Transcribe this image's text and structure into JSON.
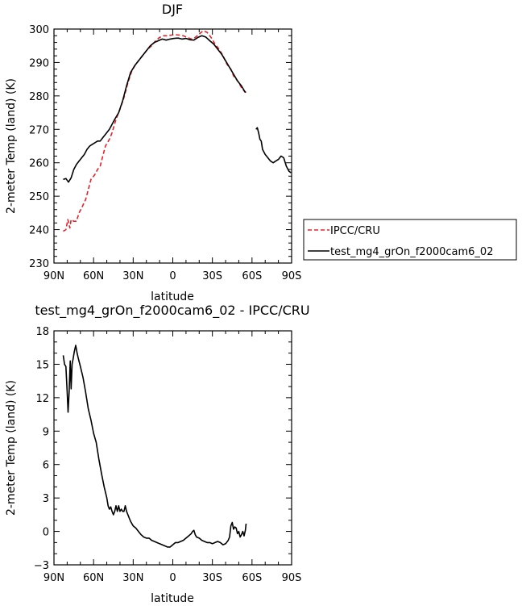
{
  "colors": {
    "obs": "#e8202a",
    "model": "#000000",
    "frame": "#000000"
  },
  "chart_data": [
    {
      "type": "line",
      "title": "DJF",
      "xlabel": "latitude",
      "ylabel": "2-meter Temp (land) (K)",
      "xlim": [
        90,
        -90
      ],
      "ylim": [
        230,
        300
      ],
      "xticks": [
        90,
        60,
        30,
        0,
        -30,
        -60,
        -90
      ],
      "xtick_labels": [
        "90N",
        "60N",
        "30N",
        "0",
        "30S",
        "60S",
        "90S"
      ],
      "yticks": [
        230,
        240,
        250,
        260,
        270,
        280,
        290,
        300
      ],
      "ytick_labels": [
        "230",
        "240",
        "250",
        "260",
        "270",
        "280",
        "290",
        "300"
      ],
      "legend": {
        "placement": "right",
        "entries": [
          {
            "label": "IPCC/CRU",
            "color": "#e8202a",
            "dash": "dashed"
          },
          {
            "label": "test_mg4_grOn_f2000cam6_02",
            "color": "#000000",
            "dash": "solid"
          }
        ]
      },
      "series": [
        {
          "name": "IPCC/CRU",
          "color": "#e8202a",
          "dash": "dashed",
          "segments": [
            [
              [
                83,
                239.5
              ],
              [
                81,
                240
              ],
              [
                79.5,
                243
              ],
              [
                78,
                240.5
              ],
              [
                77,
                243
              ],
              [
                75,
                242.5
              ],
              [
                73,
                242.5
              ],
              [
                71,
                245
              ],
              [
                69,
                246.5
              ],
              [
                66,
                249
              ],
              [
                64,
                252
              ],
              [
                62,
                255
              ],
              [
                59,
                256.5
              ],
              [
                57,
                258
              ],
              [
                55,
                259
              ],
              [
                53,
                262
              ],
              [
                51,
                265
              ],
              [
                48,
                267
              ],
              [
                46,
                269
              ],
              [
                43,
                273
              ],
              [
                40,
                276
              ],
              [
                37,
                279.5
              ],
              [
                34,
                284
              ],
              [
                31,
                287.5
              ],
              [
                28,
                289.5
              ],
              [
                25,
                291
              ],
              [
                22,
                292.5
              ],
              [
                19,
                294
              ],
              [
                16,
                295
              ],
              [
                13,
                296.5
              ],
              [
                10,
                297.5
              ],
              [
                7,
                298
              ],
              [
                4,
                298
              ],
              [
                1,
                298.2
              ],
              [
                -2,
                298.3
              ],
              [
                -5,
                298.2
              ],
              [
                -8,
                298
              ],
              [
                -11,
                297.5
              ],
              [
                -14,
                297
              ],
              [
                -17,
                297.5
              ],
              [
                -20,
                298.5
              ],
              [
                -23,
                299.5
              ],
              [
                -26,
                299
              ],
              [
                -29,
                297.5
              ],
              [
                -32,
                295.5
              ],
              [
                -35,
                294
              ],
              [
                -38,
                292
              ],
              [
                -41,
                289.5
              ],
              [
                -44,
                288
              ],
              [
                -46,
                286
              ],
              [
                -48,
                285
              ],
              [
                -50,
                284
              ],
              [
                -52,
                282.5
              ],
              [
                -54,
                281.5
              ],
              [
                -55.5,
                281
              ]
            ]
          ]
        },
        {
          "name": "test_mg4_grOn_f2000cam6_02",
          "color": "#000000",
          "dash": "solid",
          "segments": [
            [
              [
                83,
                255
              ],
              [
                81,
                255.3
              ],
              [
                79,
                254.2
              ],
              [
                77,
                255.5
              ],
              [
                75,
                258
              ],
              [
                73,
                259.5
              ],
              [
                71,
                260.5
              ],
              [
                69,
                261.5
              ],
              [
                67,
                262.5
              ],
              [
                65,
                264
              ],
              [
                63,
                265
              ],
              [
                61,
                265.5
              ],
              [
                59,
                266
              ],
              [
                57,
                266.5
              ],
              [
                55,
                266.5
              ],
              [
                53,
                267.5
              ],
              [
                51,
                268.5
              ],
              [
                48,
                270
              ],
              [
                46,
                271.5
              ],
              [
                44,
                273
              ],
              [
                41,
                275
              ],
              [
                38,
                278.5
              ],
              [
                35,
                283
              ],
              [
                32,
                287
              ],
              [
                29,
                289
              ],
              [
                26,
                290.5
              ],
              [
                23,
                292
              ],
              [
                20,
                293.5
              ],
              [
                17,
                295
              ],
              [
                14,
                296
              ],
              [
                11,
                296.5
              ],
              [
                8,
                297
              ],
              [
                5,
                296.7
              ],
              [
                2,
                297
              ],
              [
                -1,
                297.2
              ],
              [
                -4,
                297.3
              ],
              [
                -7,
                297
              ],
              [
                -10,
                297.2
              ],
              [
                -13,
                296.8
              ],
              [
                -16,
                296.7
              ],
              [
                -19,
                297.5
              ],
              [
                -22,
                298
              ],
              [
                -25,
                297.6
              ],
              [
                -28,
                296.5
              ],
              [
                -31,
                295.5
              ],
              [
                -34,
                294
              ],
              [
                -37,
                292.5
              ],
              [
                -40,
                290.5
              ],
              [
                -43,
                288.5
              ],
              [
                -46,
                286.5
              ],
              [
                -49,
                284.5
              ],
              [
                -52,
                283
              ],
              [
                -55,
                281
              ]
            ],
            [
              [
                -63,
                270
              ],
              [
                -64,
                270.5
              ],
              [
                -65,
                269
              ],
              [
                -66,
                267
              ],
              [
                -67,
                266.5
              ],
              [
                -68,
                264
              ],
              [
                -70,
                262.5
              ],
              [
                -72,
                261.5
              ],
              [
                -74,
                260.5
              ],
              [
                -76,
                260
              ],
              [
                -78,
                260.5
              ],
              [
                -80,
                261
              ],
              [
                -82,
                262
              ],
              [
                -84,
                261.5
              ],
              [
                -86,
                259
              ],
              [
                -88,
                257.5
              ],
              [
                -89.5,
                257
              ]
            ]
          ]
        }
      ]
    },
    {
      "type": "line",
      "title": "test_mg4_grOn_f2000cam6_02 - IPCC/CRU",
      "xlabel": "latitude",
      "ylabel": "2-meter Temp (land) (K)",
      "xlim": [
        90,
        -90
      ],
      "ylim": [
        -3,
        18
      ],
      "xticks": [
        90,
        60,
        30,
        0,
        -30,
        -60,
        -90
      ],
      "xtick_labels": [
        "90N",
        "60N",
        "30N",
        "0",
        "30S",
        "60S",
        "90S"
      ],
      "yticks": [
        -3,
        0,
        3,
        6,
        9,
        12,
        15,
        18
      ],
      "ytick_labels": [
        "−3",
        "0",
        "3",
        "6",
        "9",
        "12",
        "15",
        "18"
      ],
      "series": [
        {
          "color": "#000000",
          "dash": "solid",
          "segments": [
            [
              [
                83,
                15.8
              ],
              [
                82,
                15
              ],
              [
                81,
                14.8
              ],
              [
                80,
                12.5
              ],
              [
                79.3,
                10.7
              ],
              [
                78.5,
                12.5
              ],
              [
                77.7,
                15.3
              ],
              [
                77,
                12.8
              ],
              [
                76.3,
                15
              ],
              [
                75.5,
                15.5
              ],
              [
                74.5,
                16.2
              ],
              [
                73.5,
                16.7
              ],
              [
                72.5,
                16
              ],
              [
                71.5,
                15.5
              ],
              [
                70,
                14.8
              ],
              [
                68,
                13.8
              ],
              [
                66,
                12.5
              ],
              [
                64,
                11
              ],
              [
                62,
                10
              ],
              [
                60,
                8.8
              ],
              [
                58,
                8
              ],
              [
                56,
                6.5
              ],
              [
                54,
                5.2
              ],
              [
                52,
                4
              ],
              [
                50,
                3
              ],
              [
                49,
                2.3
              ],
              [
                48,
                2
              ],
              [
                47,
                2.2
              ],
              [
                46,
                1.8
              ],
              [
                45,
                1.5
              ],
              [
                44,
                1.8
              ],
              [
                43,
                2.3
              ],
              [
                42,
                1.8
              ],
              [
                41,
                2.3
              ],
              [
                40,
                1.8
              ],
              [
                39,
                2
              ],
              [
                38,
                1.8
              ],
              [
                37,
                1.8
              ],
              [
                36,
                2.3
              ],
              [
                35,
                1.8
              ],
              [
                34,
                1.5
              ],
              [
                33,
                1.2
              ],
              [
                32,
                0.9
              ],
              [
                30,
                0.5
              ],
              [
                28,
                0.3
              ],
              [
                26,
                0
              ],
              [
                24,
                -0.3
              ],
              [
                22,
                -0.5
              ],
              [
                20,
                -0.6
              ],
              [
                18,
                -0.6
              ],
              [
                16,
                -0.8
              ],
              [
                14,
                -0.9
              ],
              [
                12,
                -1
              ],
              [
                10,
                -1.1
              ],
              [
                8,
                -1.2
              ],
              [
                6,
                -1.3
              ],
              [
                4,
                -1.4
              ],
              [
                2,
                -1.4
              ],
              [
                0,
                -1.2
              ],
              [
                -2,
                -1
              ],
              [
                -4,
                -1
              ],
              [
                -6,
                -0.9
              ],
              [
                -8,
                -0.8
              ],
              [
                -10,
                -0.6
              ],
              [
                -12,
                -0.4
              ],
              [
                -14,
                -0.2
              ],
              [
                -15,
                0
              ],
              [
                -16,
                0.1
              ],
              [
                -17,
                -0.3
              ],
              [
                -18,
                -0.5
              ],
              [
                -20,
                -0.6
              ],
              [
                -22,
                -0.8
              ],
              [
                -24,
                -0.9
              ],
              [
                -26,
                -1
              ],
              [
                -28,
                -1
              ],
              [
                -30,
                -1.1
              ],
              [
                -32,
                -1
              ],
              [
                -34,
                -0.9
              ],
              [
                -36,
                -1
              ],
              [
                -38,
                -1.2
              ],
              [
                -40,
                -1.1
              ],
              [
                -42,
                -0.8
              ],
              [
                -43,
                -0.5
              ],
              [
                -44,
                0.5
              ],
              [
                -45,
                0.8
              ],
              [
                -46,
                0.2
              ],
              [
                -47,
                0.4
              ],
              [
                -48,
                0.3
              ],
              [
                -49,
                -0.2
              ],
              [
                -50,
                0
              ],
              [
                -51,
                -0.5
              ],
              [
                -52,
                -0.3
              ],
              [
                -53,
                0
              ],
              [
                -54,
                -0.4
              ],
              [
                -55,
                0.1
              ],
              [
                -55.5,
                0.7
              ]
            ]
          ]
        }
      ]
    }
  ]
}
